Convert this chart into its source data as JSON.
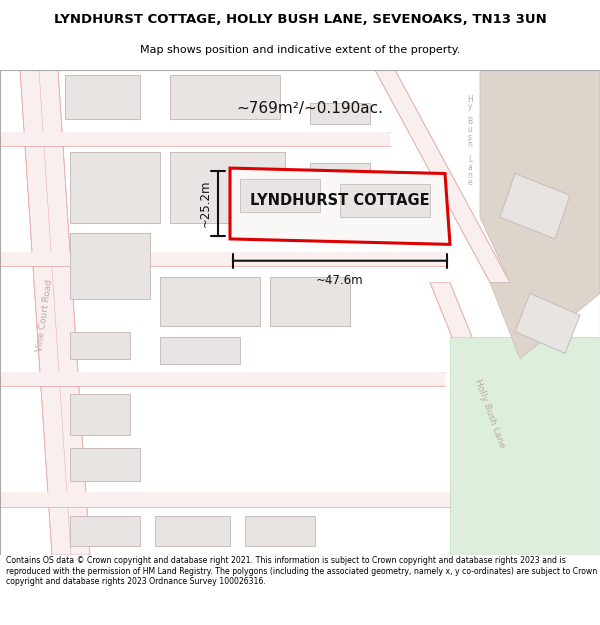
{
  "title": "LYNDHURST COTTAGE, HOLLY BUSH LANE, SEVENOAKS, TN13 3UN",
  "subtitle": "Map shows position and indicative extent of the property.",
  "area_label": "~769m²/~0.190ac.",
  "property_label": "LYNDHURST COTTAGE",
  "width_label": "~47.6m",
  "height_label": "~25.2m",
  "footer": "Contains OS data © Crown copyright and database right 2021. This information is subject to Crown copyright and database rights 2023 and is reproduced with the permission of HM Land Registry. The polygons (including the associated geometry, namely x, y co-ordinates) are subject to Crown copyright and database rights 2023 Ordnance Survey 100026316.",
  "map_bg": "#f9f7f5",
  "plot_outline_color": "#dd0000",
  "road_fill": "#f9efef",
  "road_line": "#e8b0b0",
  "building_fill": "#e8e4e2",
  "building_edge": "#c8bcbc",
  "tan_fill": "#ddd5cc",
  "tan_edge": "#c8bdb5",
  "green_fill": "#ddeedd",
  "green_edge": "#c0d8c0",
  "street_color": "#c0a8a8",
  "dim_color": "#111111",
  "white_road": "#ffffff"
}
